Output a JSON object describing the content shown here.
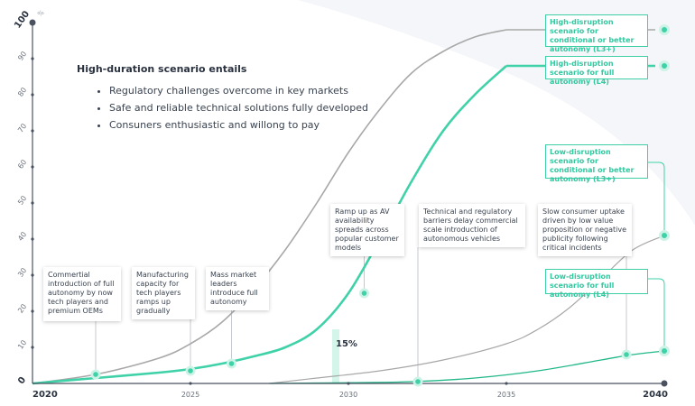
{
  "colors": {
    "accent": "#3fd1a8",
    "accent_dark": "#22b889",
    "gray_line": "#a8a8a8",
    "axis": "#4a5260",
    "text": "#2b3340"
  },
  "intro": {
    "title": "High-duration scenario entails",
    "bullets": [
      "Regulatory challenges overcome in key markets",
      "Safe and reliable technical solutions fully developed",
      "Consuners enthusiastic and willong to pay"
    ]
  },
  "annotations": [
    {
      "text": "Commertial introduction of full autonomy by now tech players and premium OEMs"
    },
    {
      "text": "Manufacturing capacity for tech players ramps up gradually"
    },
    {
      "text": "Mass market leaders introduce full autonomy"
    },
    {
      "text": "Ramp up as AV availability spreads across popular customer models"
    },
    {
      "text": "Technical and regulatory barriers delay commercial scale introduction of autonomous vehicles"
    },
    {
      "text": "Slow consumer uptake driven by low value proposition or negative publicity following critical incidents"
    }
  ],
  "pct_label": "15%",
  "y_unit": "%",
  "chart_data": {
    "type": "line",
    "xlim": [
      2020,
      2040
    ],
    "ylim": [
      0,
      100
    ],
    "x_ticks": [
      "2020",
      "2025",
      "2030",
      "2035",
      "2040"
    ],
    "y_ticks": [
      "0",
      "10",
      "20",
      "30",
      "40",
      "50",
      "60",
      "70",
      "80",
      "90",
      "100"
    ],
    "series": [
      {
        "name": "High-disruption scenario for conditional or better autonomy (L3+)",
        "style": "gray",
        "end_marker": 98,
        "x": [
          2020,
          2022,
          2024,
          2025,
          2026,
          2027,
          2028,
          2029,
          2030,
          2031,
          2032,
          2033,
          2034,
          2035
        ],
        "y": [
          0,
          2.5,
          7,
          11,
          17,
          26,
          37,
          50,
          64,
          76,
          86,
          92,
          96,
          98
        ]
      },
      {
        "name": "High-disruption scenario for full autonomy (L4)",
        "style": "accent",
        "end_marker": 88,
        "x": [
          2020,
          2022,
          2024,
          2025,
          2026,
          2027,
          2028,
          2029,
          2030,
          2031,
          2032,
          2033,
          2034,
          2035
        ],
        "y": [
          0,
          1.5,
          3,
          4,
          5.5,
          7.5,
          10,
          15,
          25,
          40,
          56,
          70,
          80,
          88
        ]
      },
      {
        "name": "Low-disruption scenario for conditional or better autonomy (L3+)",
        "style": "gray_thin",
        "end_marker": 41,
        "x": [
          2027.5,
          2029,
          2031,
          2033,
          2035,
          2036,
          2037,
          2038,
          2039,
          2040
        ],
        "y": [
          0,
          1.5,
          3.5,
          6.5,
          11,
          15,
          21,
          29,
          37,
          41
        ]
      },
      {
        "name": "Low-disruption scenario for full autonomy (L4)",
        "style": "accent_thin",
        "end_marker": 9,
        "x": [
          2027.5,
          2030,
          2032,
          2034,
          2036,
          2038,
          2039,
          2040
        ],
        "y": [
          0,
          0.2,
          0.5,
          1.5,
          3.5,
          6.5,
          8,
          9
        ]
      }
    ],
    "markers": [
      {
        "x": 2022,
        "y": 2.5
      },
      {
        "x": 2025,
        "y": 3.5
      },
      {
        "x": 2026.3,
        "y": 5.5
      },
      {
        "x": 2030.5,
        "y": 25
      },
      {
        "x": 2032.2,
        "y": 0.5
      },
      {
        "x": 2038.8,
        "y": 8
      }
    ],
    "highlight_bar": {
      "x": 2029.6,
      "value": 15,
      "label": "15%"
    }
  }
}
